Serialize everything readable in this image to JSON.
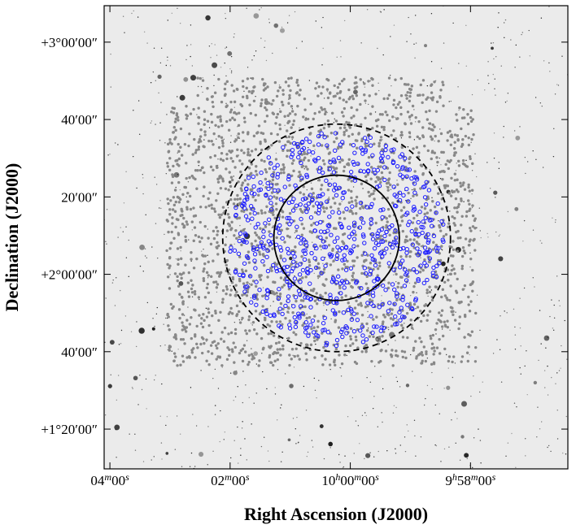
{
  "chart_data": {
    "type": "sky-map",
    "xlabel": "Right Ascension (J2000)",
    "ylabel": "Declination (J2000)",
    "xlim": [
      151.024,
      149.095
    ],
    "ylim": [
      1.162,
      3.157
    ],
    "xticks": [
      {
        "value": 151.0,
        "label": "04m00s"
      },
      {
        "value": 150.5,
        "label": "02m00s"
      },
      {
        "value": 150.0,
        "label": "10h00m00s"
      },
      {
        "value": 149.5,
        "label": "9h58m00s"
      }
    ],
    "yticks": [
      {
        "value": 3.0,
        "label": "+3°00′00″"
      },
      {
        "value": 2.6667,
        "label": "40′00″"
      },
      {
        "value": 2.3333,
        "label": "20′00″"
      },
      {
        "value": 2.0,
        "label": "+2°00′00″"
      },
      {
        "value": 1.6667,
        "label": "40′00″"
      },
      {
        "value": 1.3333,
        "label": "+1°20′00″"
      }
    ],
    "regions": [
      {
        "ra": 150.057,
        "dec": 2.157,
        "radius": 0.27,
        "style": "solid",
        "color": "#000000"
      },
      {
        "ra": 150.057,
        "dec": 2.157,
        "radius": 0.49,
        "style": "dashed",
        "color": "#000000"
      }
    ]
  }
}
